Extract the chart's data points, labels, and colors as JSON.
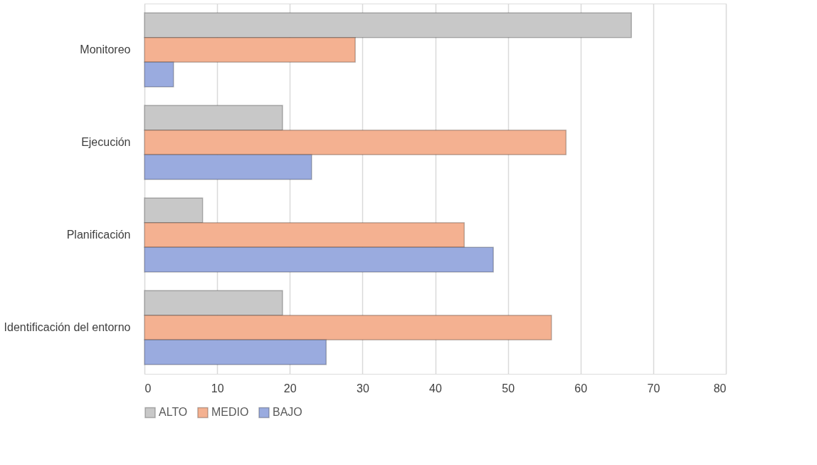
{
  "chart_data": {
    "type": "bar",
    "orientation": "horizontal",
    "categories": [
      "Monitoreo",
      "Ejecución",
      "Planificación",
      "Identificación del entorno"
    ],
    "series": [
      {
        "name": "ALTO",
        "color": "#c8c8c8",
        "values": [
          67,
          19,
          8,
          19
        ]
      },
      {
        "name": "MEDIO",
        "color": "#f4b191",
        "values": [
          29,
          58,
          44,
          56
        ]
      },
      {
        "name": "BAJO",
        "color": "#9aabdf",
        "values": [
          4,
          23,
          48,
          25
        ]
      }
    ],
    "xlim": [
      0,
      80
    ],
    "xticks": [
      0,
      10,
      20,
      30,
      40,
      50,
      60,
      70,
      80
    ],
    "grid": "x",
    "legend": "bottom"
  }
}
